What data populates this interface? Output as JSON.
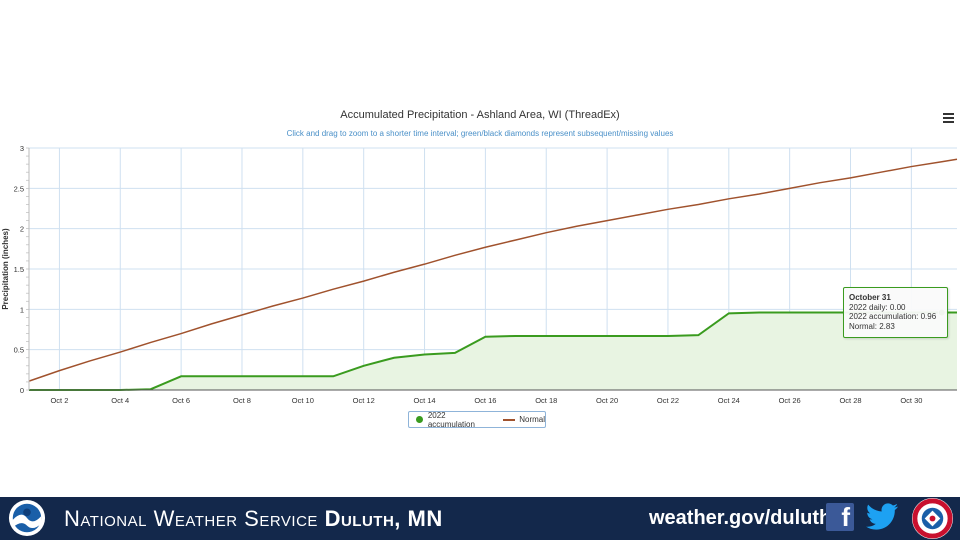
{
  "chart_data": {
    "type": "area",
    "title": "Accumulated Precipitation - Ashland Area, WI (ThreadEx)",
    "subtitle": "Click and drag to zoom to a shorter time interval; green/black diamonds represent subsequent/missing values",
    "ylabel": "Precipitation (inches)",
    "xlabel": "",
    "ylim": [
      0,
      3
    ],
    "yticks": [
      "0",
      "0.5",
      "1",
      "1.5",
      "2",
      "2.5",
      "3"
    ],
    "ytick_values": [
      0,
      0.5,
      1,
      1.5,
      2,
      2.5,
      3
    ],
    "xlim": [
      1,
      31.5
    ],
    "xticks": [
      "Oct 2",
      "Oct 4",
      "Oct 6",
      "Oct 8",
      "Oct 10",
      "Oct 12",
      "Oct 14",
      "Oct 16",
      "Oct 18",
      "Oct 20",
      "Oct 22",
      "Oct 24",
      "Oct 26",
      "Oct 28",
      "Oct 30"
    ],
    "xtick_values": [
      2,
      4,
      6,
      8,
      10,
      12,
      14,
      16,
      18,
      20,
      22,
      24,
      26,
      28,
      30
    ],
    "grid": true,
    "legend_position": "bottom-center",
    "x": [
      1,
      2,
      3,
      4,
      5,
      6,
      7,
      8,
      9,
      10,
      11,
      12,
      13,
      14,
      15,
      16,
      17,
      18,
      19,
      20,
      21,
      22,
      23,
      24,
      25,
      26,
      27,
      28,
      29,
      30,
      31
    ],
    "series": [
      {
        "name": "2022 accumulation",
        "color": "#3a9b1f",
        "fill": "#e8f4e2",
        "values": [
          0,
          0,
          0,
          0,
          0.01,
          0.17,
          0.17,
          0.17,
          0.17,
          0.17,
          0.17,
          0.3,
          0.4,
          0.44,
          0.46,
          0.66,
          0.67,
          0.67,
          0.67,
          0.67,
          0.67,
          0.67,
          0.68,
          0.95,
          0.96,
          0.96,
          0.96,
          0.96,
          0.96,
          0.96,
          0.96
        ]
      },
      {
        "name": "Normal",
        "color": "#a0522d",
        "values": [
          0.11,
          0.24,
          0.36,
          0.47,
          0.59,
          0.7,
          0.82,
          0.93,
          1.04,
          1.14,
          1.25,
          1.35,
          1.46,
          1.56,
          1.67,
          1.77,
          1.86,
          1.95,
          2.03,
          2.1,
          2.17,
          2.24,
          2.3,
          2.37,
          2.43,
          2.5,
          2.57,
          2.63,
          2.7,
          2.77,
          2.83
        ]
      }
    ],
    "tooltip": {
      "date": "October 31",
      "daily": "2022 daily: 0.00",
      "accumulation": "2022 accumulation: 0.96",
      "normal": "Normal: 2.83"
    }
  },
  "footer": {
    "office_prefix": "National Weather Service",
    "office_location": "Duluth, MN",
    "url": "weather.gov/duluth",
    "facebook_glyph": "f",
    "colors": {
      "background": "#13284b",
      "facebook": "#3b5998",
      "twitter": "#1da1f2"
    },
    "icons": [
      "noaa-logo",
      "facebook-icon",
      "twitter-icon",
      "nws-logo"
    ]
  }
}
